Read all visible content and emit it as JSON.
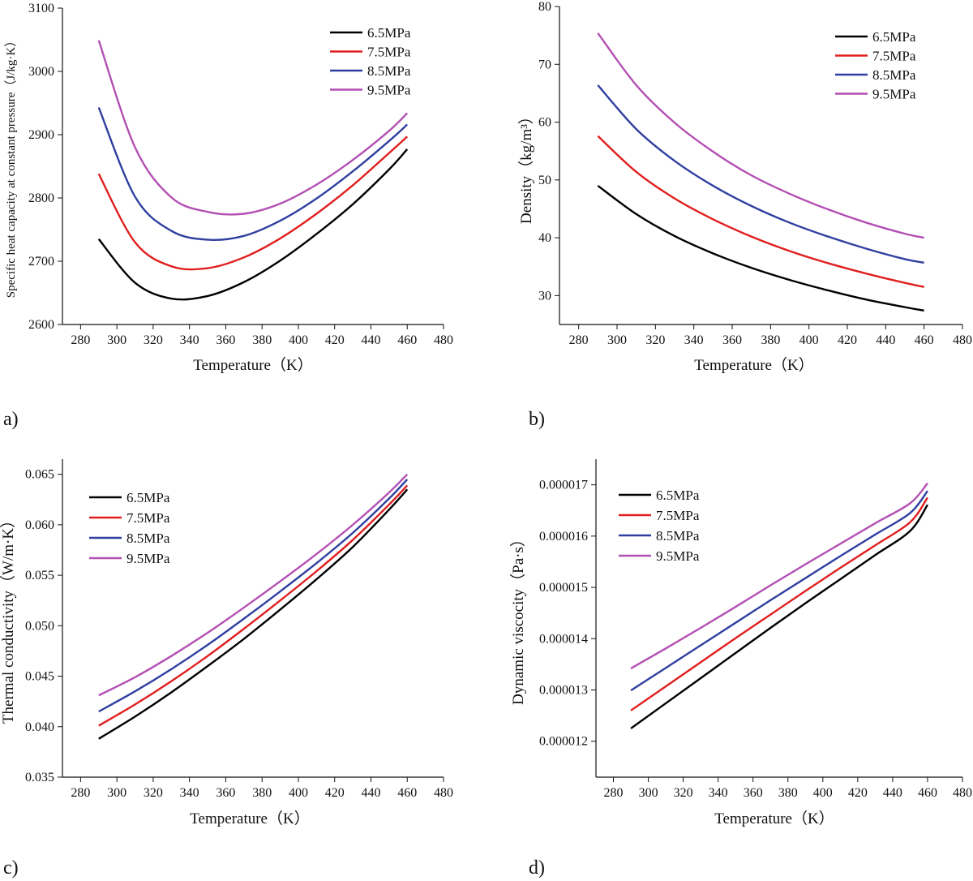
{
  "colors": {
    "s65": "#000000",
    "s75": "#e01e1e",
    "s85": "#2f3fa0",
    "s95": "#b34fb3",
    "axis": "#111111"
  },
  "chart_data": [
    {
      "panel_label": "a)",
      "type": "line",
      "title": "",
      "xlabel": "Temperature（K）",
      "ylabel": "Specific heat capacity at constant pressure（J/kg·K）",
      "xlim": [
        270,
        480
      ],
      "ylim": [
        2600,
        3100
      ],
      "xticks": [
        280,
        300,
        320,
        340,
        360,
        380,
        400,
        420,
        440,
        460,
        480
      ],
      "xtick_labels": [
        "280",
        "300",
        "320",
        "340",
        "360",
        "380",
        "400",
        "420",
        "440",
        "460",
        "480"
      ],
      "yticks": [
        2600,
        2700,
        2800,
        2900,
        3000,
        3100
      ],
      "ytick_labels": [
        "2600",
        "2700",
        "2800",
        "2900",
        "3000",
        "3100"
      ],
      "legend_position": "top-right",
      "x": [
        290,
        310,
        330,
        350,
        370,
        390,
        410,
        430,
        450,
        460
      ],
      "series": [
        {
          "name": "6.5MPa",
          "color_key": "s65",
          "values": [
            2735,
            2666,
            2641,
            2645,
            2667,
            2701,
            2743,
            2790,
            2845,
            2877
          ]
        },
        {
          "name": "7.5MPa",
          "color_key": "s75",
          "values": [
            2838,
            2730,
            2692,
            2689,
            2706,
            2736,
            2775,
            2820,
            2871,
            2897
          ]
        },
        {
          "name": "8.5MPa",
          "color_key": "s85",
          "values": [
            2943,
            2802,
            2748,
            2734,
            2740,
            2764,
            2799,
            2842,
            2890,
            2916
          ]
        },
        {
          "name": "9.5MPa",
          "color_key": "s95",
          "values": [
            3049,
            2880,
            2801,
            2778,
            2775,
            2791,
            2821,
            2860,
            2906,
            2934
          ]
        }
      ]
    },
    {
      "panel_label": "b)",
      "type": "line",
      "title": "",
      "xlabel": "Temperature（K）",
      "ylabel": "Density（kg/m³）",
      "xlim": [
        270,
        480
      ],
      "ylim": [
        25,
        80
      ],
      "xticks": [
        280,
        300,
        320,
        340,
        360,
        380,
        400,
        420,
        440,
        460,
        480
      ],
      "xtick_labels": [
        "280",
        "300",
        "320",
        "340",
        "360",
        "380",
        "400",
        "420",
        "440",
        "460",
        "480"
      ],
      "yticks": [
        30,
        40,
        50,
        60,
        70,
        80
      ],
      "ytick_labels": [
        "30",
        "40",
        "50",
        "60",
        "70",
        "80"
      ],
      "legend_position": "top-right",
      "x": [
        290,
        310,
        330,
        350,
        370,
        390,
        410,
        430,
        450,
        460
      ],
      "series": [
        {
          "name": "6.5MPa",
          "color_key": "s65",
          "values": [
            49.0,
            44.1,
            40.3,
            37.3,
            34.8,
            32.7,
            30.9,
            29.3,
            28.0,
            27.4
          ]
        },
        {
          "name": "7.5MPa",
          "color_key": "s75",
          "values": [
            57.6,
            51.4,
            46.8,
            43.2,
            40.2,
            37.7,
            35.6,
            33.8,
            32.2,
            31.5
          ]
        },
        {
          "name": "8.5MPa",
          "color_key": "s85",
          "values": [
            66.4,
            58.8,
            53.3,
            49.0,
            45.5,
            42.6,
            40.2,
            38.1,
            36.3,
            35.7
          ]
        },
        {
          "name": "9.5MPa",
          "color_key": "s95",
          "values": [
            75.4,
            66.4,
            59.9,
            54.9,
            50.8,
            47.6,
            44.9,
            42.6,
            40.7,
            40.0
          ]
        }
      ]
    },
    {
      "panel_label": "c)",
      "type": "line",
      "title": "",
      "xlabel": "Temperature（K）",
      "ylabel": "Thermal conductivity（W/m·K）",
      "xlim": [
        270,
        480
      ],
      "ylim": [
        0.035,
        0.0665
      ],
      "xticks": [
        280,
        300,
        320,
        340,
        360,
        380,
        400,
        420,
        440,
        460,
        480
      ],
      "xtick_labels": [
        "280",
        "300",
        "320",
        "340",
        "360",
        "380",
        "400",
        "420",
        "440",
        "460",
        "480"
      ],
      "yticks": [
        0.035,
        0.04,
        0.045,
        0.05,
        0.055,
        0.06,
        0.065
      ],
      "ytick_labels": [
        "0.035",
        "0.040",
        "0.045",
        "0.050",
        "0.055",
        "0.060",
        "0.065"
      ],
      "legend_position": "top-left",
      "x": [
        290,
        310,
        330,
        350,
        370,
        390,
        410,
        430,
        450,
        460
      ],
      "series": [
        {
          "name": "6.5MPa",
          "color_key": "s65",
          "values": [
            0.0388,
            0.041,
            0.0434,
            0.046,
            0.0487,
            0.0516,
            0.0546,
            0.0578,
            0.0615,
            0.0635
          ]
        },
        {
          "name": "7.5MPa",
          "color_key": "s75",
          "values": [
            0.0401,
            0.0422,
            0.0445,
            0.047,
            0.0497,
            0.0525,
            0.0554,
            0.0585,
            0.062,
            0.0639
          ]
        },
        {
          "name": "8.5MPa",
          "color_key": "s85",
          "values": [
            0.0415,
            0.0435,
            0.0457,
            0.0481,
            0.0507,
            0.0534,
            0.0562,
            0.0592,
            0.0626,
            0.0645
          ]
        },
        {
          "name": "9.5MPa",
          "color_key": "s95",
          "values": [
            0.0431,
            0.0449,
            0.047,
            0.0493,
            0.0518,
            0.0544,
            0.0571,
            0.06,
            0.0632,
            0.065
          ]
        }
      ]
    },
    {
      "panel_label": "d)",
      "type": "line",
      "title": "",
      "xlabel": "Temperature（K）",
      "ylabel": "Dynamic viscocity（Pa·s）",
      "xlim": [
        270,
        480
      ],
      "ylim": [
        1.13e-05,
        1.75e-05
      ],
      "xticks": [
        280,
        300,
        320,
        340,
        360,
        380,
        400,
        420,
        440,
        460,
        480
      ],
      "xtick_labels": [
        "280",
        "300",
        "320",
        "340",
        "360",
        "380",
        "400",
        "420",
        "440",
        "460",
        "480"
      ],
      "yticks": [
        1.2e-05,
        1.3e-05,
        1.4e-05,
        1.5e-05,
        1.6e-05,
        1.7e-05
      ],
      "ytick_labels": [
        "0.000012",
        "0.000013",
        "0.000014",
        "0.000015",
        "0.000016",
        "0.000017"
      ],
      "legend_position": "top-left",
      "x": [
        290,
        310,
        330,
        350,
        370,
        390,
        410,
        430,
        450,
        460
      ],
      "series": [
        {
          "name": "6.5MPa",
          "color_key": "s65",
          "values": [
            1.225e-05,
            1.274e-05,
            1.323e-05,
            1.372e-05,
            1.421e-05,
            1.469e-05,
            1.516e-05,
            1.563e-05,
            1.61e-05,
            1.661e-05
          ]
        },
        {
          "name": "7.5MPa",
          "color_key": "s75",
          "values": [
            1.26e-05,
            1.307e-05,
            1.354e-05,
            1.401e-05,
            1.447e-05,
            1.493e-05,
            1.538e-05,
            1.582e-05,
            1.627e-05,
            1.675e-05
          ]
        },
        {
          "name": "8.5MPa",
          "color_key": "s85",
          "values": [
            1.299e-05,
            1.343e-05,
            1.387e-05,
            1.431e-05,
            1.475e-05,
            1.518e-05,
            1.561e-05,
            1.603e-05,
            1.645e-05,
            1.688e-05
          ]
        },
        {
          "name": "9.5MPa",
          "color_key": "s95",
          "values": [
            1.342e-05,
            1.381e-05,
            1.421e-05,
            1.462e-05,
            1.504e-05,
            1.545e-05,
            1.585e-05,
            1.625e-05,
            1.664e-05,
            1.703e-05
          ]
        }
      ]
    }
  ]
}
